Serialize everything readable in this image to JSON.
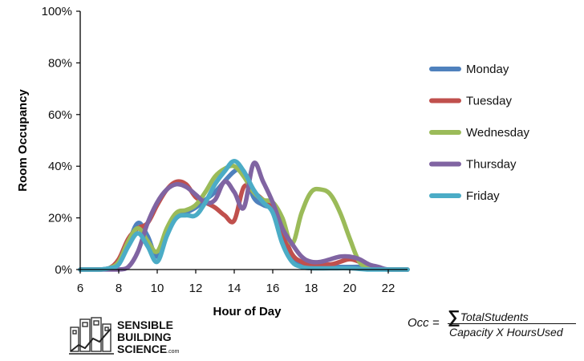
{
  "chart_data": {
    "type": "line",
    "xlabel": "Hour of Day",
    "ylabel": "Room Occupancy",
    "xlim": [
      6,
      23
    ],
    "ylim": [
      0,
      100
    ],
    "x_ticks": [
      "6",
      "8",
      "10",
      "12",
      "14",
      "16",
      "18",
      "20",
      "22"
    ],
    "y_ticks": [
      "0%",
      "20%",
      "40%",
      "60%",
      "80%",
      "100%"
    ],
    "legend_position": "right",
    "series": [
      {
        "name": "Monday",
        "color": "#4f81bd",
        "points": [
          [
            6,
            0
          ],
          [
            7,
            0
          ],
          [
            7.5,
            0.5
          ],
          [
            8,
            2
          ],
          [
            8.5,
            10
          ],
          [
            9,
            18
          ],
          [
            9.5,
            13
          ],
          [
            10,
            5
          ],
          [
            10.5,
            15
          ],
          [
            11,
            20
          ],
          [
            11.5,
            22
          ],
          [
            12,
            24
          ],
          [
            12.5,
            27
          ],
          [
            13,
            30
          ],
          [
            14,
            38
          ],
          [
            14.5,
            38
          ],
          [
            15,
            28
          ],
          [
            15.5,
            25
          ],
          [
            16,
            23
          ],
          [
            16.5,
            14
          ],
          [
            17,
            5
          ],
          [
            17.5,
            2
          ],
          [
            18,
            1
          ],
          [
            19,
            1
          ],
          [
            20,
            1
          ],
          [
            21,
            1
          ],
          [
            22,
            0
          ],
          [
            23,
            0
          ]
        ]
      },
      {
        "name": "Tuesday",
        "color": "#c0504d",
        "points": [
          [
            6,
            0
          ],
          [
            7,
            0
          ],
          [
            7.5,
            0.5
          ],
          [
            8,
            4
          ],
          [
            8.5,
            12
          ],
          [
            9,
            16
          ],
          [
            9.5,
            18
          ],
          [
            10,
            25
          ],
          [
            10.5,
            31
          ],
          [
            11,
            34
          ],
          [
            11.5,
            33
          ],
          [
            12,
            28
          ],
          [
            12.5,
            26
          ],
          [
            13,
            24
          ],
          [
            13.5,
            21
          ],
          [
            14,
            19
          ],
          [
            14.5,
            32
          ],
          [
            15,
            30
          ],
          [
            15.5,
            27
          ],
          [
            16,
            24
          ],
          [
            16.5,
            15
          ],
          [
            17,
            6
          ],
          [
            17.5,
            3
          ],
          [
            18,
            2
          ],
          [
            19,
            2
          ],
          [
            19.5,
            3
          ],
          [
            20,
            4
          ],
          [
            20.5,
            3
          ],
          [
            21,
            1
          ],
          [
            22,
            0
          ],
          [
            23,
            0
          ]
        ]
      },
      {
        "name": "Wednesday",
        "color": "#9bbb59",
        "points": [
          [
            6,
            0
          ],
          [
            7,
            0
          ],
          [
            7.5,
            0.5
          ],
          [
            8,
            3
          ],
          [
            8.5,
            11
          ],
          [
            9,
            16
          ],
          [
            9.5,
            11
          ],
          [
            10,
            7
          ],
          [
            10.5,
            16
          ],
          [
            11,
            22
          ],
          [
            11.5,
            23
          ],
          [
            12,
            25
          ],
          [
            12.5,
            30
          ],
          [
            13,
            36
          ],
          [
            13.5,
            39
          ],
          [
            14,
            40
          ],
          [
            14.5,
            36
          ],
          [
            15,
            30
          ],
          [
            15.5,
            27
          ],
          [
            16,
            26
          ],
          [
            16.5,
            20
          ],
          [
            17,
            10
          ],
          [
            17.5,
            22
          ],
          [
            18,
            30
          ],
          [
            18.5,
            31
          ],
          [
            19,
            29
          ],
          [
            19.5,
            22
          ],
          [
            20,
            12
          ],
          [
            20.5,
            3
          ],
          [
            21,
            1
          ],
          [
            22,
            0
          ],
          [
            23,
            0
          ]
        ]
      },
      {
        "name": "Thursday",
        "color": "#8064a2",
        "points": [
          [
            6,
            0
          ],
          [
            7,
            0
          ],
          [
            8,
            0
          ],
          [
            8.5,
            1
          ],
          [
            9,
            7
          ],
          [
            9.5,
            18
          ],
          [
            10,
            26
          ],
          [
            10.5,
            31
          ],
          [
            11,
            33
          ],
          [
            11.5,
            32
          ],
          [
            12,
            29
          ],
          [
            12.5,
            26
          ],
          [
            13,
            27
          ],
          [
            13.5,
            34
          ],
          [
            14,
            30
          ],
          [
            14.5,
            24
          ],
          [
            15,
            41
          ],
          [
            15.5,
            34
          ],
          [
            16,
            26
          ],
          [
            16.5,
            16
          ],
          [
            17,
            10
          ],
          [
            17.5,
            5
          ],
          [
            18,
            3
          ],
          [
            18.5,
            3
          ],
          [
            19,
            4
          ],
          [
            19.5,
            5
          ],
          [
            20,
            5
          ],
          [
            20.5,
            4
          ],
          [
            21,
            2
          ],
          [
            21.5,
            1
          ],
          [
            22,
            0
          ],
          [
            23,
            0
          ]
        ]
      },
      {
        "name": "Friday",
        "color": "#4bacc6",
        "points": [
          [
            6,
            0
          ],
          [
            7,
            0
          ],
          [
            7.5,
            0.5
          ],
          [
            8,
            2
          ],
          [
            8.5,
            9
          ],
          [
            9,
            14
          ],
          [
            9.5,
            9
          ],
          [
            10,
            3
          ],
          [
            10.5,
            13
          ],
          [
            11,
            20
          ],
          [
            11.5,
            21
          ],
          [
            12,
            21
          ],
          [
            12.5,
            26
          ],
          [
            13,
            33
          ],
          [
            13.5,
            38
          ],
          [
            14,
            42
          ],
          [
            14.5,
            38
          ],
          [
            15,
            31
          ],
          [
            15.5,
            26
          ],
          [
            16,
            22
          ],
          [
            16.5,
            10
          ],
          [
            17,
            3
          ],
          [
            17.5,
            1
          ],
          [
            18,
            0.5
          ],
          [
            19,
            0.5
          ],
          [
            20,
            0.5
          ],
          [
            21,
            0
          ],
          [
            22,
            0
          ],
          [
            23,
            0
          ]
        ]
      }
    ]
  },
  "logo": {
    "line1": "Sensible",
    "line2": "Building",
    "line3": "Science",
    "suffix": ".com"
  },
  "formula": {
    "lhs": "Occ =",
    "sum_symbol": "∑",
    "numerator": "TotalStudents",
    "denominator": "Capacity X HoursUsed"
  }
}
